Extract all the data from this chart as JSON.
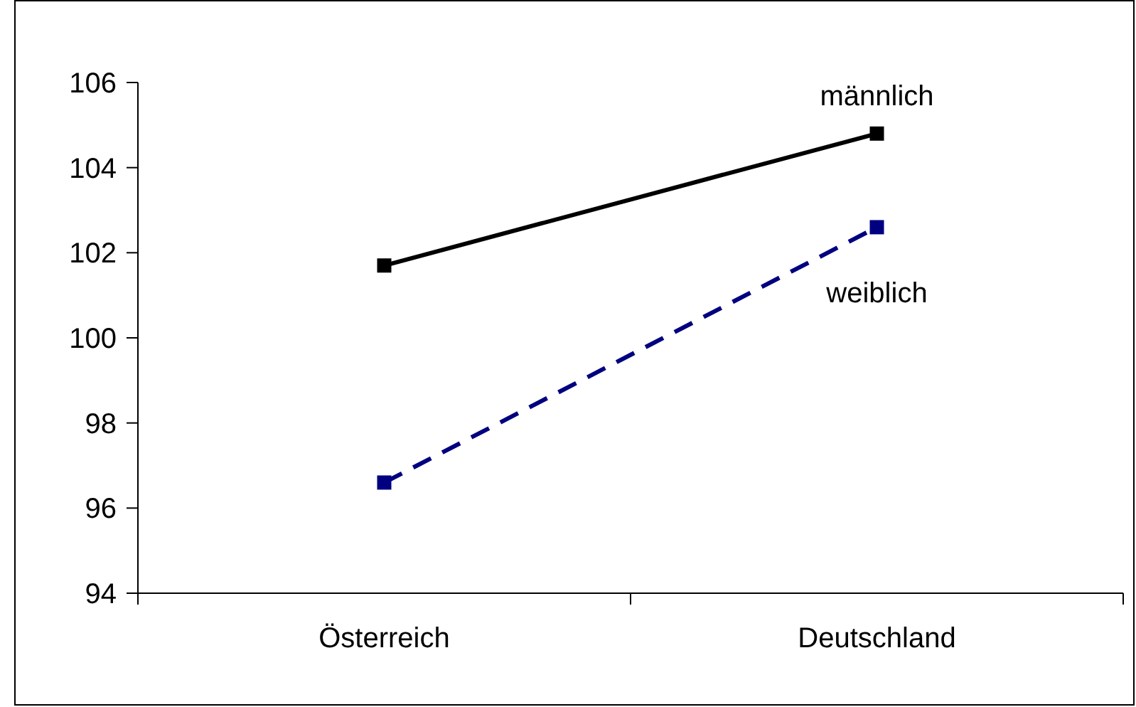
{
  "chart_data": {
    "type": "line",
    "categories": [
      "Österreich",
      "Deutschland"
    ],
    "series": [
      {
        "name": "männlich",
        "color": "#000000",
        "values": [
          101.7,
          104.8
        ],
        "line_style": "solid"
      },
      {
        "name": "weiblich",
        "color": "#000080",
        "values": [
          96.6,
          102.6
        ],
        "line_style": "dashed"
      }
    ],
    "ylim": [
      94,
      106
    ],
    "yticks": [
      94,
      96,
      98,
      100,
      102,
      104,
      106
    ],
    "grid": false,
    "marker": "square"
  }
}
